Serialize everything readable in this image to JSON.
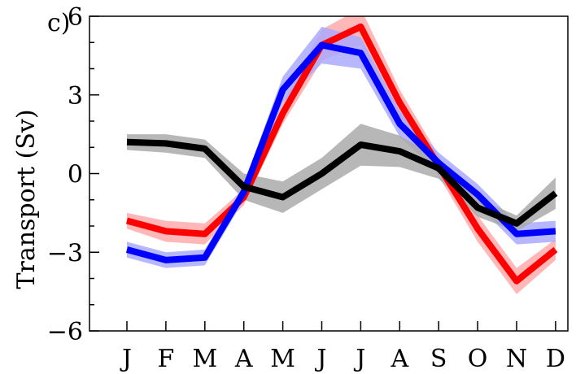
{
  "chart_data": {
    "type": "line",
    "panel_label": "c)",
    "ylabel": "Transport (Sv)",
    "xlabel": "",
    "ylim": [
      -6,
      6
    ],
    "yticks": [
      -6,
      -3,
      0,
      3,
      6
    ],
    "ytick_labels": [
      "−6",
      "−3",
      "0",
      "3",
      "6"
    ],
    "categories": [
      "J",
      "F",
      "M",
      "A",
      "M",
      "J",
      "J",
      "A",
      "S",
      "O",
      "N",
      "D"
    ],
    "grid": false,
    "series": [
      {
        "color": "#ff0000",
        "band_color": "#ffaaaa",
        "values": [
          -1.8,
          -2.2,
          -2.3,
          -0.9,
          2.3,
          4.9,
          5.6,
          2.7,
          0.3,
          -2.1,
          -4.1,
          -2.9
        ],
        "band_halfwidth": [
          0.3,
          0.4,
          0.4,
          0.3,
          0.4,
          0.6,
          0.7,
          0.5,
          0.4,
          0.5,
          0.5,
          0.4
        ]
      },
      {
        "color": "#0000ff",
        "band_color": "#aaaaff",
        "values": [
          -2.9,
          -3.3,
          -3.2,
          -0.7,
          3.2,
          4.9,
          4.6,
          1.9,
          0.4,
          -0.8,
          -2.3,
          -2.2
        ],
        "band_halfwidth": [
          0.3,
          0.3,
          0.3,
          0.3,
          0.5,
          0.7,
          0.6,
          0.5,
          0.4,
          0.4,
          0.4,
          0.4
        ]
      },
      {
        "color": "#000000",
        "band_color": "#aaaaaa",
        "values": [
          1.2,
          1.15,
          0.95,
          -0.5,
          -0.9,
          0.0,
          1.1,
          0.85,
          0.2,
          -1.3,
          -1.9,
          -0.75
        ],
        "band_halfwidth": [
          0.3,
          0.35,
          0.35,
          0.5,
          0.6,
          0.6,
          0.8,
          0.6,
          0.4,
          0.35,
          0.3,
          0.6
        ]
      }
    ]
  }
}
